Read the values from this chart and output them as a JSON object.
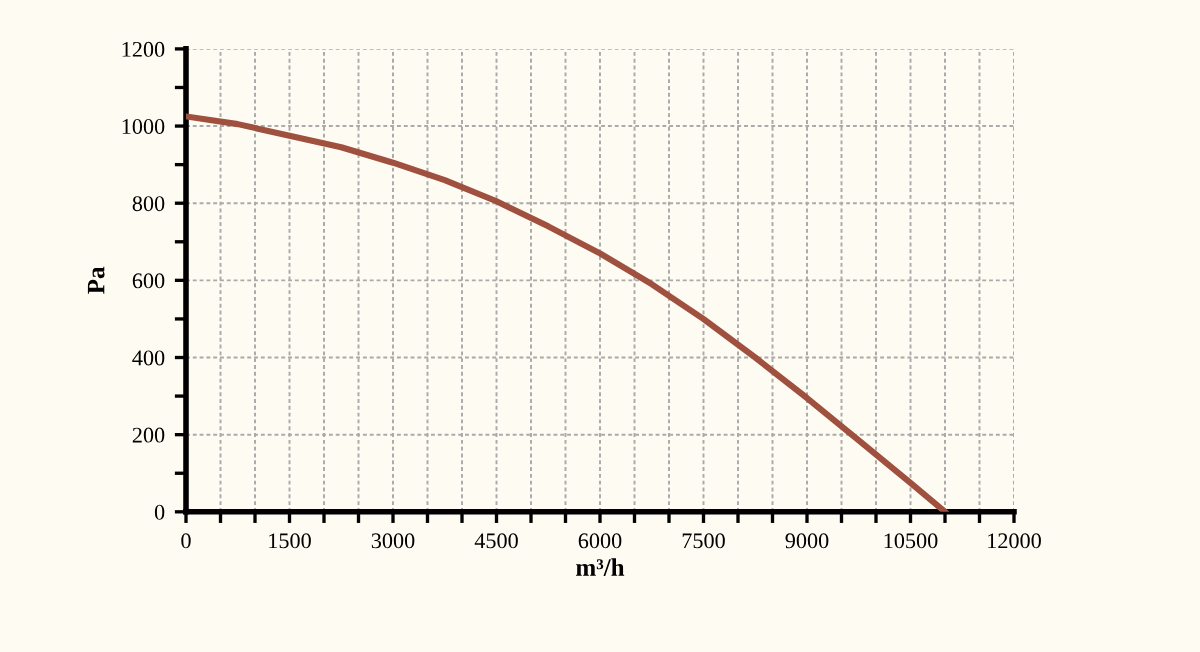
{
  "chart_data": {
    "type": "line",
    "xlabel": "m³/h",
    "ylabel": "Pa",
    "x": [
      0,
      750,
      1500,
      2250,
      3000,
      3750,
      4500,
      5250,
      6000,
      6750,
      7500,
      8250,
      9000,
      9750,
      10500,
      11000
    ],
    "series": [
      {
        "color": "#a0503f",
        "values": [
          1025,
          1005,
          975,
          945,
          905,
          860,
          805,
          740,
          670,
          590,
          500,
          400,
          295,
          185,
          75,
          0
        ]
      }
    ],
    "xlim": [
      0,
      12000
    ],
    "xticks": [
      0,
      {
        "value": 500,
        "label": null
      },
      {
        "value": 1000,
        "label": null
      },
      1500,
      {
        "value": 2000,
        "label": null
      },
      {
        "value": 2500,
        "label": null
      },
      3000,
      {
        "value": 3500,
        "label": null
      },
      {
        "value": 4000,
        "label": null
      },
      4500,
      {
        "value": 5000,
        "label": null
      },
      {
        "value": 5500,
        "label": null
      },
      6000,
      {
        "value": 6500,
        "label": null
      },
      {
        "value": 7000,
        "label": null
      },
      7500,
      {
        "value": 8000,
        "label": null
      },
      {
        "value": 8500,
        "label": null
      },
      9000,
      {
        "value": 9500,
        "label": null
      },
      {
        "value": 10000,
        "label": null
      },
      10500,
      {
        "value": 11000,
        "label": null
      },
      {
        "value": 11500,
        "label": null
      },
      12000
    ],
    "ylim": [
      0,
      1200
    ],
    "yticks": [
      0,
      {
        "value": 100,
        "label": null
      },
      200,
      {
        "value": 300,
        "label": null
      },
      400,
      {
        "value": 500,
        "label": null
      },
      600,
      {
        "value": 700,
        "label": null
      },
      800,
      {
        "value": 900,
        "label": null
      },
      1000,
      {
        "value": 1100,
        "label": null
      },
      1200
    ],
    "grid": true,
    "line_style": "solid",
    "marker": "none"
  }
}
